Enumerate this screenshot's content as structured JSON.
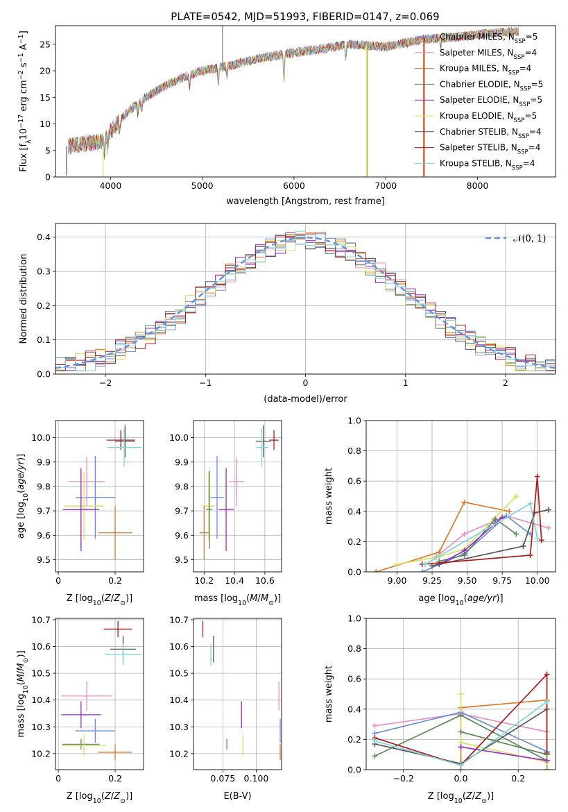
{
  "title": "PLATE=0542, MJD=51993, FIBERID=0147, z=0.069",
  "colors": {
    "Chabrier MILES": "#6a8fe0",
    "Salpeter MILES": "#e88dc6",
    "Kroupa MILES": "#de7a24",
    "Chabrier ELODIE": "#5a8a5e",
    "Salpeter ELODIE": "#9a2fc0",
    "Kroupa ELODIE": "#d6e260",
    "Chabrier STELIB": "#555555",
    "Salpeter STELIB": "#b01a1a",
    "Kroupa STELIB": "#7fd6d6"
  },
  "chart_data": [
    {
      "id": "spectrum",
      "type": "line",
      "xlabel": "wavelength [Angstrom, rest frame]",
      "ylabel": "Flux [fλ10^-17 erg cm^-2 s^-1 A^-1]",
      "xlim": [
        3400,
        8850
      ],
      "ylim": [
        0,
        28.5
      ],
      "xticks": [
        4000,
        5000,
        6000,
        7000,
        8000
      ],
      "yticks": [
        0,
        5,
        10,
        15,
        20,
        25
      ],
      "legend_position": "right",
      "legend": [
        "Chabrier MILES, N_SSP=5",
        "Salpeter MILES, N_SSP=4",
        "Kroupa MILES, N_SSP=4",
        "Chabrier ELODIE, N_SSP=5",
        "Salpeter ELODIE, N_SSP=5",
        "Kroupa ELODIE, N_SSP=5",
        "Chabrier STELIB, N_SSP=4",
        "Salpeter STELIB, N_SSP=4",
        "Kroupa STELIB, N_SSP=4"
      ],
      "continuum": [
        [
          3550,
          5.8
        ],
        [
          3700,
          6.2
        ],
        [
          3900,
          6.6
        ],
        [
          4000,
          8.6
        ],
        [
          4200,
          12.5
        ],
        [
          4400,
          15.2
        ],
        [
          4600,
          17.2
        ],
        [
          4800,
          18.8
        ],
        [
          5000,
          20.0
        ],
        [
          5300,
          21.0
        ],
        [
          5600,
          22.3
        ],
        [
          6000,
          23.4
        ],
        [
          6300,
          24.1
        ],
        [
          6600,
          25.0
        ],
        [
          7000,
          24.5
        ],
        [
          7400,
          25.9
        ],
        [
          7800,
          26.4
        ],
        [
          8100,
          27.0
        ],
        [
          8450,
          27.5
        ]
      ],
      "spikes": [
        [
          3520,
          0.3
        ],
        [
          3920,
          0.1
        ],
        [
          5220,
          28.5
        ],
        [
          6790,
          0.1
        ],
        [
          6800,
          0.1
        ],
        [
          7410,
          0.1
        ],
        [
          7420,
          0.1
        ]
      ]
    },
    {
      "id": "residuals",
      "type": "histogram",
      "xlabel": "(data-model)/error",
      "ylabel": "Normed distribution",
      "xlim": [
        -2.5,
        2.5
      ],
      "ylim": [
        0,
        0.44
      ],
      "xticks": [
        -2,
        -1,
        0,
        1,
        2
      ],
      "yticks": [
        0.0,
        0.1,
        0.2,
        0.3,
        0.4
      ],
      "grid": true,
      "reference_curve": "N(0,1)",
      "reference_label": "𝒩(0, 1)",
      "bin_width": 0.1,
      "grid_x_tick_labels": [
        "−2",
        "−1",
        "0",
        "1",
        "2"
      ]
    },
    {
      "id": "age_vs_Z",
      "type": "errorbar",
      "xlabel": "Z [log10(Z/Z⊙)]",
      "ylabel": "age [log10(age/yr)]",
      "xlim": [
        -0.01,
        0.3
      ],
      "ylim": [
        9.45,
        10.07
      ],
      "xticks": [
        0.0,
        0.2
      ],
      "yticks": [
        9.5,
        9.6,
        9.7,
        9.8,
        9.9,
        10.0
      ],
      "points": [
        {
          "m": "Salpeter STELIB",
          "x": 0.22,
          "xe": 0.05,
          "y": 9.99,
          "ye": 0.04
        },
        {
          "m": "Chabrier STELIB",
          "x": 0.235,
          "xe": 0.035,
          "y": 9.985,
          "ye": 0.065
        },
        {
          "m": "Kroupa STELIB",
          "x": 0.232,
          "xe": 0.06,
          "y": 9.96,
          "ye": 0.08
        },
        {
          "m": "Salpeter MILES",
          "x": 0.1,
          "xe": 0.065,
          "y": 9.82,
          "ye": 0.1
        },
        {
          "m": "Chabrier MILES",
          "x": 0.13,
          "xe": 0.07,
          "y": 9.755,
          "ye": 0.17
        },
        {
          "m": "Kroupa ELODIE",
          "x": 0.09,
          "xe": 0.07,
          "y": 9.72,
          "ye": 0.14
        },
        {
          "m": "Chabrier ELODIE",
          "x": 0.08,
          "xe": 0.065,
          "y": 9.705,
          "ye": 0.16
        },
        {
          "m": "Salpeter ELODIE",
          "x": 0.08,
          "xe": 0.06,
          "y": 9.705,
          "ye": 0.17
        },
        {
          "m": "Kroupa MILES",
          "x": 0.2,
          "xe": 0.06,
          "y": 9.61,
          "ye": 0.11
        }
      ]
    },
    {
      "id": "age_vs_mass",
      "type": "errorbar",
      "xlabel": "mass [log10(M/M⊙)]",
      "xlim": [
        10.13,
        10.71
      ],
      "ylim": [
        9.45,
        10.07
      ],
      "xticks": [
        10.2,
        10.4,
        10.6
      ],
      "yticks": [
        9.5,
        9.6,
        9.7,
        9.8,
        9.9,
        10.0
      ],
      "points": [
        {
          "m": "Salpeter STELIB",
          "x": 10.66,
          "xe": 0.03,
          "y": 9.99,
          "ye": 0.04
        },
        {
          "m": "Chabrier STELIB",
          "x": 10.59,
          "xe": 0.05,
          "y": 9.985,
          "ye": 0.065
        },
        {
          "m": "Kroupa STELIB",
          "x": 10.58,
          "xe": 0.04,
          "y": 9.96,
          "ye": 0.08
        },
        {
          "m": "Salpeter MILES",
          "x": 10.415,
          "xe": 0.05,
          "y": 9.82,
          "ye": 0.1
        },
        {
          "m": "Chabrier MILES",
          "x": 10.285,
          "xe": 0.045,
          "y": 9.755,
          "ye": 0.17
        },
        {
          "m": "Kroupa ELODIE",
          "x": 10.23,
          "xe": 0.04,
          "y": 9.72,
          "ye": 0.14
        },
        {
          "m": "Chabrier ELODIE",
          "x": 10.235,
          "xe": 0.02,
          "y": 9.705,
          "ye": 0.16
        },
        {
          "m": "Salpeter ELODIE",
          "x": 10.345,
          "xe": 0.05,
          "y": 9.705,
          "ye": 0.17
        },
        {
          "m": "Kroupa MILES",
          "x": 10.2,
          "xe": 0.03,
          "y": 9.61,
          "ye": 0.11
        }
      ]
    },
    {
      "id": "massweight_vs_age",
      "type": "line",
      "xlabel": "age [log10(age/yr)]",
      "ylabel": "mass weight",
      "xlim": [
        8.78,
        10.13
      ],
      "ylim": [
        0.0,
        1.0
      ],
      "xticks": [
        9.0,
        9.25,
        9.5,
        9.75,
        10.0
      ],
      "xticklabels": [
        "9.00",
        "9.25",
        "9.50",
        "9.75",
        "10.00"
      ],
      "yticks": [
        0.0,
        0.2,
        0.4,
        0.6,
        0.8,
        1.0
      ],
      "series": [
        {
          "m": "Kroupa MILES",
          "x": [
            8.85,
            9.3,
            9.48,
            9.8
          ],
          "y": [
            0.0,
            0.13,
            0.46,
            0.4
          ]
        },
        {
          "m": "Salpeter MILES",
          "x": [
            9.28,
            9.48,
            9.78,
            10.08
          ],
          "y": [
            0.1,
            0.25,
            0.37,
            0.29
          ]
        },
        {
          "m": "Chabrier MILES",
          "x": [
            9.18,
            9.48,
            9.78,
            9.95
          ],
          "y": [
            0.0,
            0.12,
            0.37,
            0.25
          ]
        },
        {
          "m": "Kroupa ELODIE",
          "x": [
            9.0,
            9.3,
            9.48,
            9.85
          ],
          "y": [
            0.05,
            0.1,
            0.15,
            0.5
          ]
        },
        {
          "m": "Chabrier ELODIE",
          "x": [
            9.3,
            9.48,
            9.7,
            9.85
          ],
          "y": [
            0.07,
            0.11,
            0.35,
            0.25
          ]
        },
        {
          "m": "Salpeter ELODIE",
          "x": [
            9.3,
            9.48,
            9.7,
            9.75
          ],
          "y": [
            0.05,
            0.14,
            0.32,
            0.36
          ]
        },
        {
          "m": "Chabrier STELIB",
          "x": [
            9.25,
            9.9,
            9.98,
            10.08
          ],
          "y": [
            0.04,
            0.17,
            0.39,
            0.41
          ]
        },
        {
          "m": "Salpeter STELIB",
          "x": [
            9.18,
            9.95,
            10.0,
            10.03
          ],
          "y": [
            0.05,
            0.11,
            0.63,
            0.21
          ]
        },
        {
          "m": "Kroupa STELIB",
          "x": [
            9.2,
            9.95,
            10.0
          ],
          "y": [
            0.05,
            0.45,
            0.22
          ]
        }
      ]
    },
    {
      "id": "mass_vs_Z",
      "type": "errorbar",
      "xlabel": "Z [log10(Z/Z⊙)]",
      "ylabel": "mass [log10(M/M⊙)]",
      "xlim": [
        -0.01,
        0.3
      ],
      "ylim": [
        10.14,
        10.705
      ],
      "xticks": [
        0.0,
        0.2
      ],
      "yticks": [
        10.2,
        10.3,
        10.4,
        10.5,
        10.6,
        10.7
      ],
      "points": [
        {
          "m": "Salpeter STELIB",
          "x": 0.21,
          "xe": 0.05,
          "y": 10.665,
          "ye": 0.03
        },
        {
          "m": "Chabrier STELIB",
          "x": 0.228,
          "xe": 0.045,
          "y": 10.59,
          "ye": 0.05
        },
        {
          "m": "Kroupa STELIB",
          "x": 0.228,
          "xe": 0.065,
          "y": 10.57,
          "ye": 0.04
        },
        {
          "m": "Salpeter MILES",
          "x": 0.1,
          "xe": 0.09,
          "y": 10.415,
          "ye": 0.055
        },
        {
          "m": "Salpeter ELODIE",
          "x": 0.08,
          "xe": 0.07,
          "y": 10.345,
          "ye": 0.05
        },
        {
          "m": "Chabrier MILES",
          "x": 0.13,
          "xe": 0.07,
          "y": 10.285,
          "ye": 0.045
        },
        {
          "m": "Chabrier ELODIE",
          "x": 0.08,
          "xe": 0.065,
          "y": 10.235,
          "ye": 0.02
        },
        {
          "m": "Kroupa ELODIE",
          "x": 0.09,
          "xe": 0.08,
          "y": 10.23,
          "ye": 0.04
        },
        {
          "m": "Kroupa MILES",
          "x": 0.2,
          "xe": 0.06,
          "y": 10.205,
          "ye": 0.03
        }
      ]
    },
    {
      "id": "mass_vs_EBV",
      "type": "errorbar",
      "xlabel": "E(B-V)",
      "xlim": [
        0.053,
        0.119
      ],
      "ylim": [
        10.14,
        10.705
      ],
      "xticks": [
        0.075,
        0.1
      ],
      "xticklabels": [
        "0.075",
        "0.100"
      ],
      "yticks": [
        10.2,
        10.3,
        10.4,
        10.5,
        10.6,
        10.7
      ],
      "points": [
        {
          "m": "Salpeter STELIB",
          "x": 0.06,
          "xe": 0,
          "y": 10.665,
          "ye": 0.03
        },
        {
          "m": "Chabrier STELIB",
          "x": 0.068,
          "xe": 0,
          "y": 10.59,
          "ye": 0.05
        },
        {
          "m": "Kroupa STELIB",
          "x": 0.066,
          "xe": 0,
          "y": 10.57,
          "ye": 0.04
        },
        {
          "m": "Salpeter MILES",
          "x": 0.117,
          "xe": 0,
          "y": 10.415,
          "ye": 0.055
        },
        {
          "m": "Salpeter ELODIE",
          "x": 0.089,
          "xe": 0,
          "y": 10.345,
          "ye": 0.05
        },
        {
          "m": "Chabrier MILES",
          "x": 0.118,
          "xe": 0,
          "y": 10.285,
          "ye": 0.045
        },
        {
          "m": "Chabrier ELODIE",
          "x": 0.078,
          "xe": 0,
          "y": 10.235,
          "ye": 0.02
        },
        {
          "m": "Kroupa ELODIE",
          "x": 0.09,
          "xe": 0,
          "y": 10.23,
          "ye": 0.04
        },
        {
          "m": "Kroupa MILES",
          "x": 0.118,
          "xe": 0,
          "y": 10.205,
          "ye": 0.03
        }
      ]
    },
    {
      "id": "massweight_vs_Z",
      "type": "line",
      "xlabel": "Z [log10(Z/Z⊙)]",
      "ylabel": "mass weight",
      "xlim": [
        -0.33,
        0.33
      ],
      "ylim": [
        0.0,
        1.0
      ],
      "xticks": [
        -0.2,
        0.0,
        0.2
      ],
      "xticklabels": [
        "−0.2",
        "0.0",
        "0.2"
      ],
      "yticks": [
        0.0,
        0.2,
        0.4,
        0.6,
        0.8,
        1.0
      ],
      "series": [
        {
          "m": "Kroupa MILES",
          "x": [
            0.0,
            0.0,
            0.3,
            0.3
          ],
          "y": [
            0.0,
            0.41,
            0.46,
            0.0
          ]
        },
        {
          "m": "Salpeter MILES",
          "x": [
            -0.3,
            0.0,
            0.3
          ],
          "y": [
            0.29,
            0.37,
            0.25
          ]
        },
        {
          "m": "Chabrier MILES",
          "x": [
            -0.3,
            0.0,
            0.3
          ],
          "y": [
            0.24,
            0.38,
            0.12
          ]
        },
        {
          "m": "Kroupa ELODIE",
          "x": [
            0.0,
            0.0,
            0.3
          ],
          "y": [
            0.5,
            0.18,
            0.05
          ]
        },
        {
          "m": "Chabrier ELODIE",
          "x": [
            -0.3,
            0.0,
            0.3
          ],
          "y": [
            0.09,
            0.36,
            0.06
          ]
        },
        {
          "m": "Salpeter ELODIE",
          "x": [
            0.0,
            0.3
          ],
          "y": [
            0.15,
            0.06
          ]
        },
        {
          "m": "Chabrier STELIB",
          "x": [
            -0.3,
            0.0,
            0.3
          ],
          "y": [
            0.17,
            0.04,
            0.4
          ]
        },
        {
          "m": "Salpeter STELIB",
          "x": [
            -0.3,
            0.0,
            0.3,
            0.3
          ],
          "y": [
            0.21,
            0.03,
            0.63,
            0.11
          ]
        },
        {
          "m": "Kroupa STELIB",
          "x": [
            -0.3,
            0.0,
            0.3
          ],
          "y": [
            0.19,
            0.03,
            0.45
          ]
        },
        {
          "m": "Chabrier ELODIE",
          "x": [
            0.0,
            0.3
          ],
          "y": [
            0.25,
            0.1
          ]
        }
      ]
    }
  ]
}
